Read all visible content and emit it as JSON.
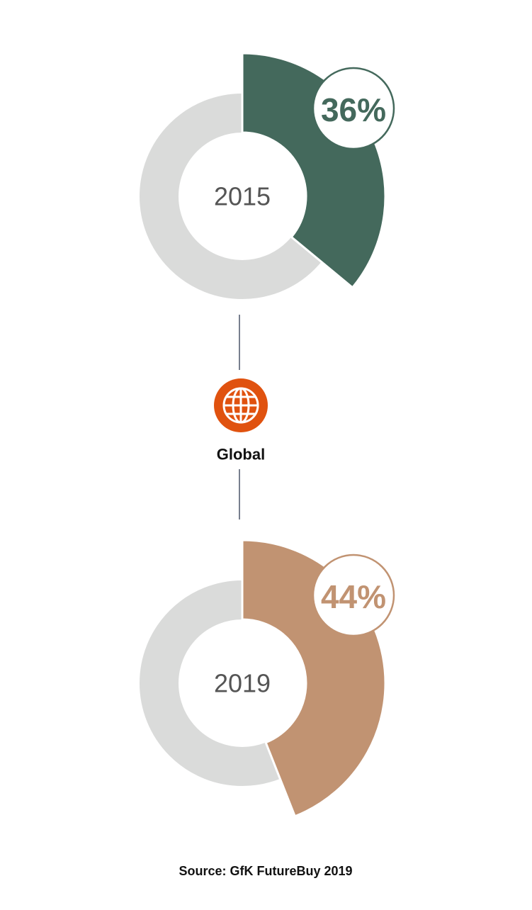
{
  "chart_data": [
    {
      "type": "donut",
      "center_label": "2015",
      "values": [
        36
      ],
      "value_labels": [
        "36%"
      ],
      "color": "#44695c"
    },
    {
      "type": "donut",
      "center_label": "2019",
      "values": [
        44
      ],
      "value_labels": [
        "44%"
      ],
      "color": "#c19372"
    }
  ],
  "region_label": "Global",
  "source": "Source: GfK FutureBuy 2019"
}
